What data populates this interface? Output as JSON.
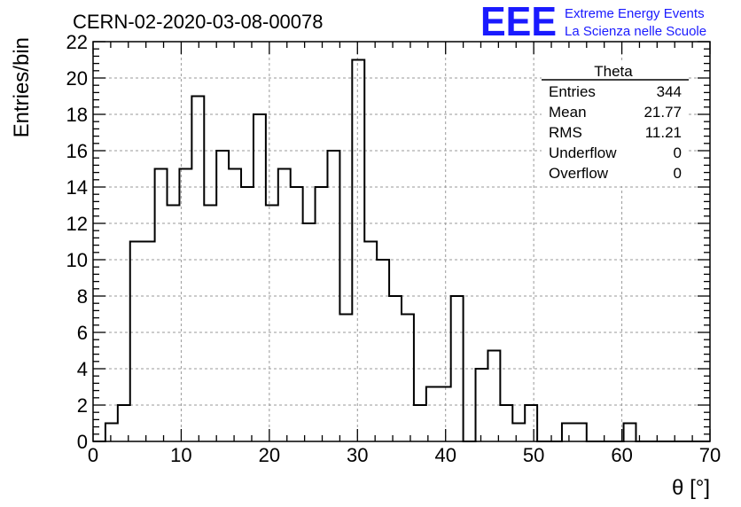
{
  "chart_data": {
    "type": "bar",
    "title": "CERN-02-2020-03-08-00078",
    "xlabel": "θ [°]",
    "ylabel": "Entries/bin",
    "xlim": [
      0,
      70
    ],
    "ylim": [
      0,
      22
    ],
    "xticks": [
      "0",
      "10",
      "20",
      "30",
      "40",
      "50",
      "60",
      "70"
    ],
    "yticks": [
      "0",
      "2",
      "4",
      "6",
      "8",
      "10",
      "12",
      "14",
      "16",
      "18",
      "20",
      "22"
    ],
    "grid": true,
    "bin_width": 1.4,
    "bin_edges_start": 0,
    "values": [
      0,
      1,
      2,
      11,
      11,
      15,
      13,
      15,
      19,
      13,
      16,
      15,
      14,
      18,
      13,
      15,
      14,
      12,
      14,
      16,
      7,
      21,
      11,
      10,
      8,
      7,
      2,
      3,
      3,
      8,
      0,
      4,
      5,
      2,
      1,
      2,
      0,
      0,
      1,
      1,
      0,
      0,
      0,
      1,
      0,
      0,
      0,
      0,
      0,
      0
    ],
    "stats_box": {
      "title": "Theta",
      "rows": [
        {
          "label": "Entries",
          "value": "344"
        },
        {
          "label": "Mean",
          "value": "21.77"
        },
        {
          "label": "RMS",
          "value": "11.21"
        },
        {
          "label": "Underflow",
          "value": "0"
        },
        {
          "label": "Overflow",
          "value": "0"
        }
      ]
    }
  },
  "logo": {
    "mark": "EEE",
    "line1": "Extreme Energy Events",
    "line2": "La Scienza nelle Scuole",
    "color": "#1a1aff"
  },
  "colors": {
    "line": "#000000",
    "grid": "#9a9a9a"
  }
}
